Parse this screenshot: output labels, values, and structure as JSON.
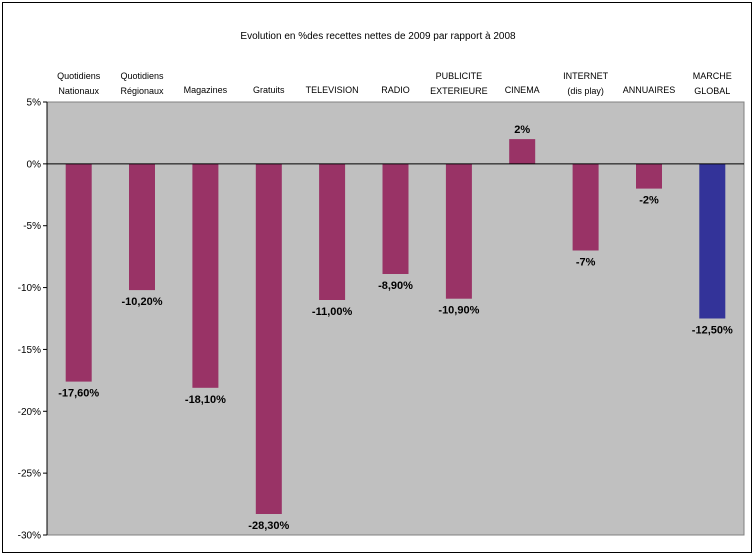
{
  "chart_data": {
    "type": "bar",
    "title": "Evolution en %des recettes nettes de 2009 par rapport à 2008",
    "xlabel": "",
    "ylabel": "",
    "categories": [
      [
        "Quotidiens",
        "Nationaux"
      ],
      [
        "Quotidiens",
        "Régionaux"
      ],
      [
        "Magazines"
      ],
      [
        "Gratuits"
      ],
      [
        "TELEVISION"
      ],
      [
        "RADIO"
      ],
      [
        "PUBLICITE",
        "EXTERIEURE"
      ],
      [
        "CINEMA"
      ],
      [
        "INTERNET",
        "(dis play)"
      ],
      [
        "ANNUAIRES"
      ],
      [
        "MARCHE",
        "GLOBAL"
      ]
    ],
    "values": [
      -17.6,
      -10.2,
      -18.1,
      -28.3,
      -11.0,
      -8.9,
      -10.9,
      2,
      -7,
      -2,
      -12.5
    ],
    "data_labels": [
      "-17,60%",
      "-10,20%",
      "-18,10%",
      "-28,30%",
      "-11,00%",
      "-8,90%",
      "-10,90%",
      "2%",
      "-7%",
      "-2%",
      "-12,50%"
    ],
    "ylim": [
      -30,
      5
    ],
    "yticks": [
      5,
      0,
      -5,
      -10,
      -15,
      -20,
      -25,
      -30
    ],
    "ytick_labels": [
      "5%",
      "0%",
      "-5%",
      "-10%",
      "-15%",
      "-20%",
      "-25%",
      "-30%"
    ],
    "grid": false,
    "legend": "none",
    "colors": {
      "plot_area": "#c0c0c0",
      "bar": "#993366",
      "highlight_bar": "#333399",
      "axis": "#000000"
    },
    "highlight_index": 10
  }
}
